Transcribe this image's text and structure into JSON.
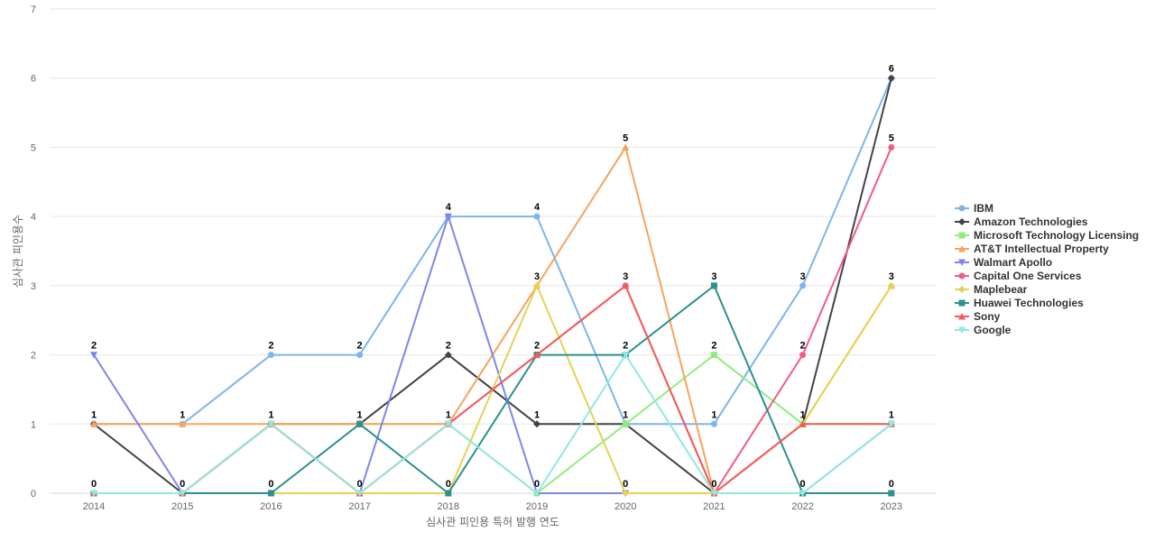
{
  "chart_data": {
    "type": "line",
    "title": "",
    "xlabel": "심사관 피인용 특허 발행 연도",
    "ylabel": "심사관 피인용수",
    "x": [
      "2014",
      "2015",
      "2016",
      "2017",
      "2018",
      "2019",
      "2020",
      "2021",
      "2022",
      "2023"
    ],
    "ylim": [
      0,
      7
    ],
    "yticks": [
      0,
      1,
      2,
      3,
      4,
      5,
      6,
      7
    ],
    "grid": true,
    "legend_position": "right",
    "series": [
      {
        "name": "IBM",
        "color": "#7cb5ec",
        "marker": "circle",
        "values": [
          1,
          1,
          2,
          2,
          4,
          4,
          1,
          1,
          3,
          6
        ]
      },
      {
        "name": "Amazon Technologies",
        "color": "#434348",
        "marker": "diamond",
        "values": [
          1,
          0,
          1,
          1,
          2,
          1,
          1,
          0,
          1,
          6
        ]
      },
      {
        "name": "Microsoft Technology Licensing",
        "color": "#90ed7d",
        "marker": "square",
        "values": [
          0,
          0,
          1,
          1,
          1,
          0,
          1,
          2,
          1,
          1
        ]
      },
      {
        "name": "AT&T Intellectual Property",
        "color": "#f7a35c",
        "marker": "triangle",
        "values": [
          1,
          1,
          1,
          1,
          1,
          3,
          5,
          0,
          1,
          3
        ]
      },
      {
        "name": "Walmart Apollo",
        "color": "#8085e9",
        "marker": "triangle-down",
        "values": [
          2,
          0,
          1,
          0,
          4,
          0,
          0,
          0,
          0,
          1
        ]
      },
      {
        "name": "Capital One Services",
        "color": "#f15c80",
        "marker": "circle",
        "values": [
          0,
          0,
          1,
          0,
          1,
          2,
          3,
          0,
          2,
          5
        ]
      },
      {
        "name": "Maplebear",
        "color": "#e4d354",
        "marker": "diamond",
        "values": [
          0,
          0,
          0,
          0,
          0,
          3,
          0,
          0,
          1,
          3
        ]
      },
      {
        "name": "Huawei Technologies",
        "color": "#2b908f",
        "marker": "square",
        "values": [
          0,
          0,
          0,
          1,
          0,
          2,
          2,
          3,
          0,
          0
        ]
      },
      {
        "name": "Sony",
        "color": "#f45b5b",
        "marker": "triangle",
        "values": [
          0,
          0,
          1,
          0,
          1,
          2,
          3,
          0,
          1,
          1
        ]
      },
      {
        "name": "Google",
        "color": "#91e8e1",
        "marker": "triangle-down",
        "values": [
          0,
          0,
          1,
          0,
          1,
          0,
          2,
          0,
          0,
          1
        ]
      }
    ],
    "data_labels": {
      "x": [
        "2014",
        "2015",
        "2016",
        "2017",
        "2018",
        "2019",
        "2020",
        "2021",
        "2022",
        "2023"
      ],
      "top": [
        "2",
        "1",
        "2",
        "2",
        "4",
        "4",
        "5",
        "3",
        "3",
        "6"
      ],
      "upper": [
        "1",
        "",
        "1",
        "1",
        "2",
        "3",
        "3",
        "2",
        "2",
        "5"
      ],
      "mid": [
        "",
        "",
        "",
        "",
        "1",
        "2",
        "2",
        "1",
        "1",
        "3"
      ],
      "lower": [
        "",
        "",
        "",
        "",
        "",
        "1",
        "1",
        "",
        "",
        "1"
      ],
      "bottom": [
        "0",
        "0",
        "0",
        "0",
        "0",
        "0",
        "0",
        "0",
        "0",
        "0"
      ]
    }
  }
}
